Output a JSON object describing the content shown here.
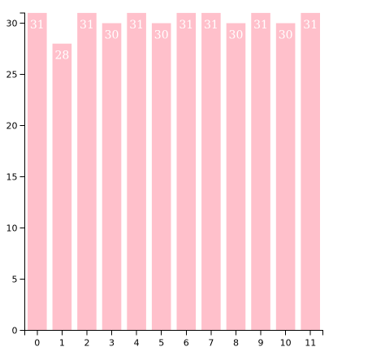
{
  "chart_data": {
    "type": "bar",
    "categories": [
      "0",
      "1",
      "2",
      "3",
      "4",
      "5",
      "6",
      "7",
      "8",
      "9",
      "10",
      "11"
    ],
    "values": [
      31,
      28,
      31,
      30,
      31,
      30,
      31,
      31,
      30,
      31,
      30,
      31
    ],
    "data_labels": [
      "31",
      "28",
      "31",
      "30",
      "31",
      "30",
      "31",
      "31",
      "30",
      "31",
      "30",
      "31"
    ],
    "y_ticks": [
      0,
      5,
      10,
      15,
      20,
      25,
      30
    ],
    "y_tick_labels": [
      "0",
      "5",
      "10",
      "15",
      "20",
      "25",
      "30"
    ],
    "ylim": [
      0,
      31
    ],
    "title": "",
    "xlabel": "",
    "ylabel": "",
    "grid": false,
    "colors": {
      "bar": "#ffc0cb",
      "bar_label": "#ffffff",
      "axis": "#000000"
    }
  }
}
